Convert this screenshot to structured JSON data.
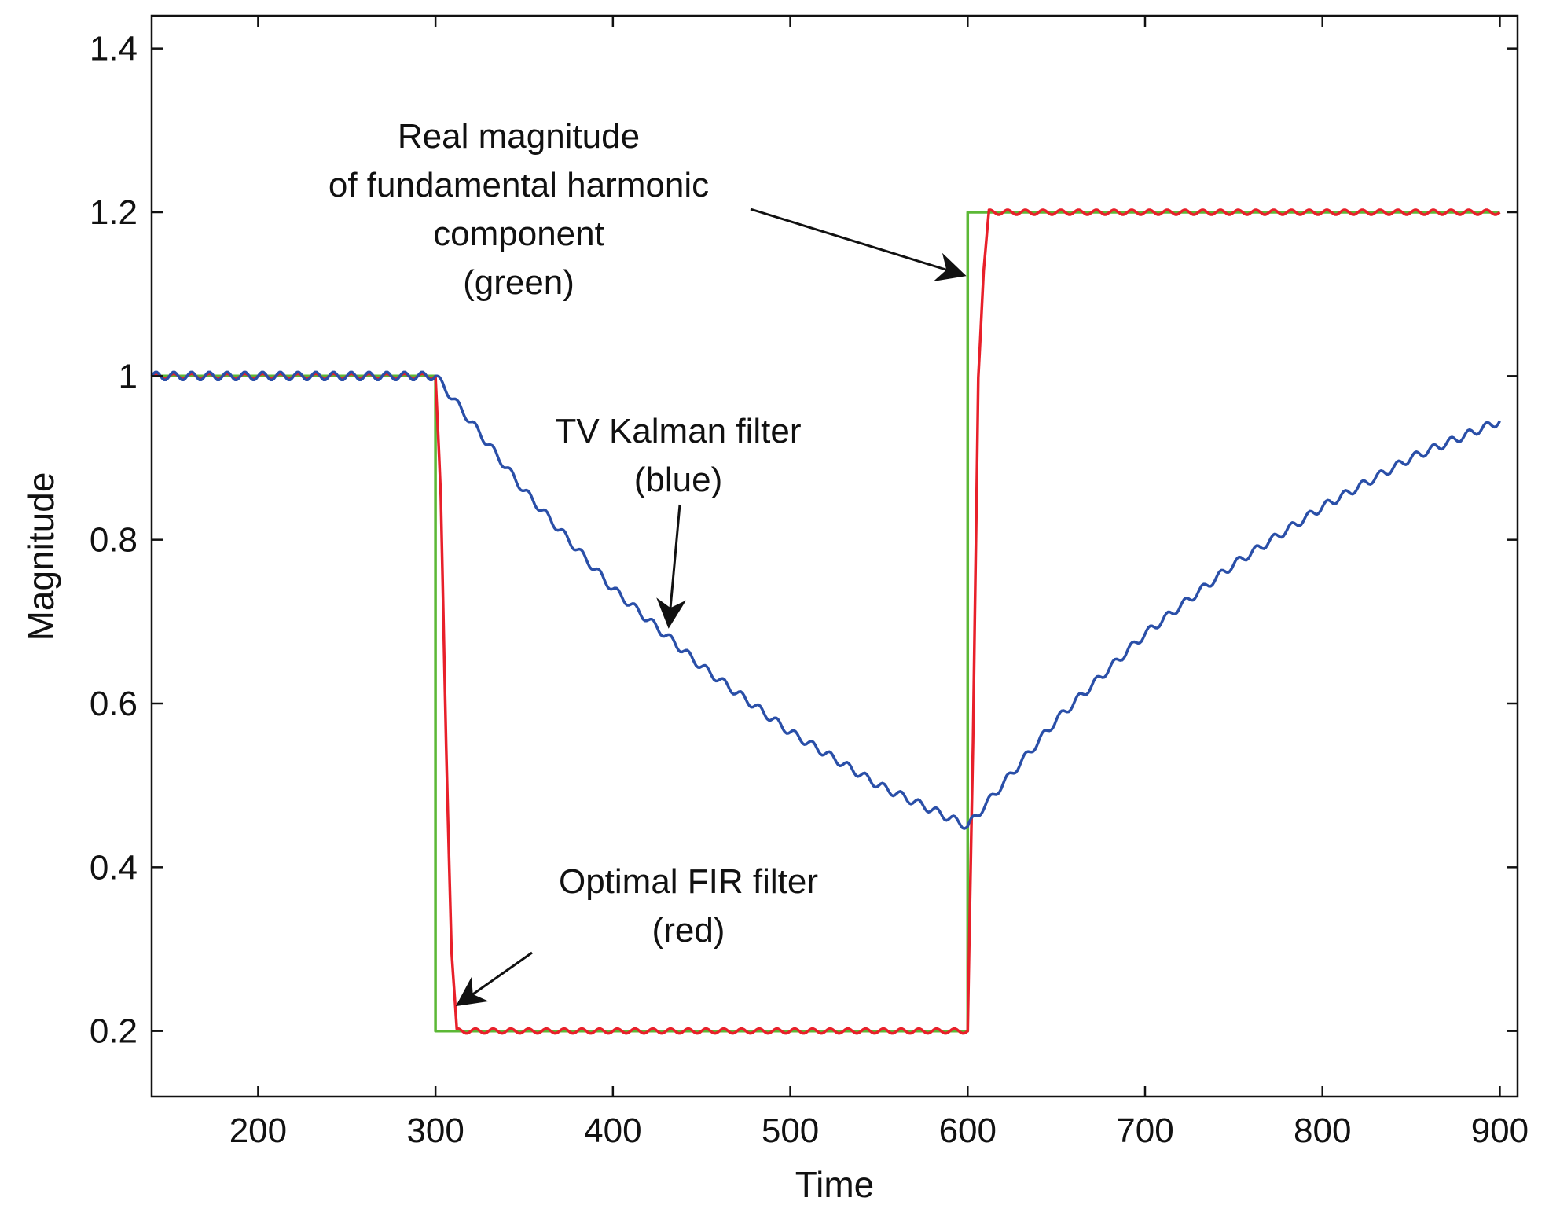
{
  "chart_data": {
    "type": "line",
    "title": "",
    "xlabel": "Time",
    "ylabel": "Magnitude",
    "xlim": [
      140,
      910
    ],
    "ylim": [
      0.12,
      1.44
    ],
    "xticks": [
      200,
      300,
      400,
      500,
      600,
      700,
      800,
      900
    ],
    "yticks": [
      0.2,
      0.4,
      0.6,
      0.8,
      1.0,
      1.2,
      1.4
    ],
    "ytick_labels": [
      "0.2",
      "0.4",
      "0.6",
      "0.8",
      "1",
      "1.2",
      "1.4"
    ],
    "grid": false,
    "series": [
      {
        "name": "Real magnitude of fundamental harmonic component",
        "color": "#5cb836",
        "x": [
          140,
          300,
          300,
          600,
          600,
          900
        ],
        "y": [
          1.0,
          1.0,
          0.2,
          0.2,
          1.2,
          1.2
        ]
      },
      {
        "name": "Optimal FIR filter",
        "color": "#e8202a",
        "x": [
          140,
          300,
          303,
          306,
          309,
          312,
          600,
          603,
          606,
          609,
          612,
          900
        ],
        "y": [
          1.0,
          1.0,
          0.85,
          0.55,
          0.3,
          0.2,
          0.2,
          0.55,
          1.0,
          1.13,
          1.2,
          1.2
        ],
        "ripple_amplitude": 0.003
      },
      {
        "name": "TV Kalman filter",
        "color": "#2a4fa8",
        "x": [
          140,
          300,
          350,
          400,
          450,
          500,
          550,
          600,
          650,
          700,
          750,
          800,
          850,
          900
        ],
        "y": [
          1.0,
          1.0,
          0.86,
          0.74,
          0.645,
          0.565,
          0.5,
          0.45,
          0.58,
          0.685,
          0.77,
          0.84,
          0.9,
          0.945
        ],
        "ripple_amplitude": 0.005
      }
    ],
    "annotations": [
      {
        "name": "green",
        "lines": [
          "Real magnitude",
          "of fundamental harmonic",
          "component",
          "(green)"
        ]
      },
      {
        "name": "blue",
        "lines": [
          "TV Kalman filter",
          "(blue)"
        ]
      },
      {
        "name": "red",
        "lines": [
          "Optimal FIR filter",
          "(red)"
        ]
      }
    ]
  }
}
